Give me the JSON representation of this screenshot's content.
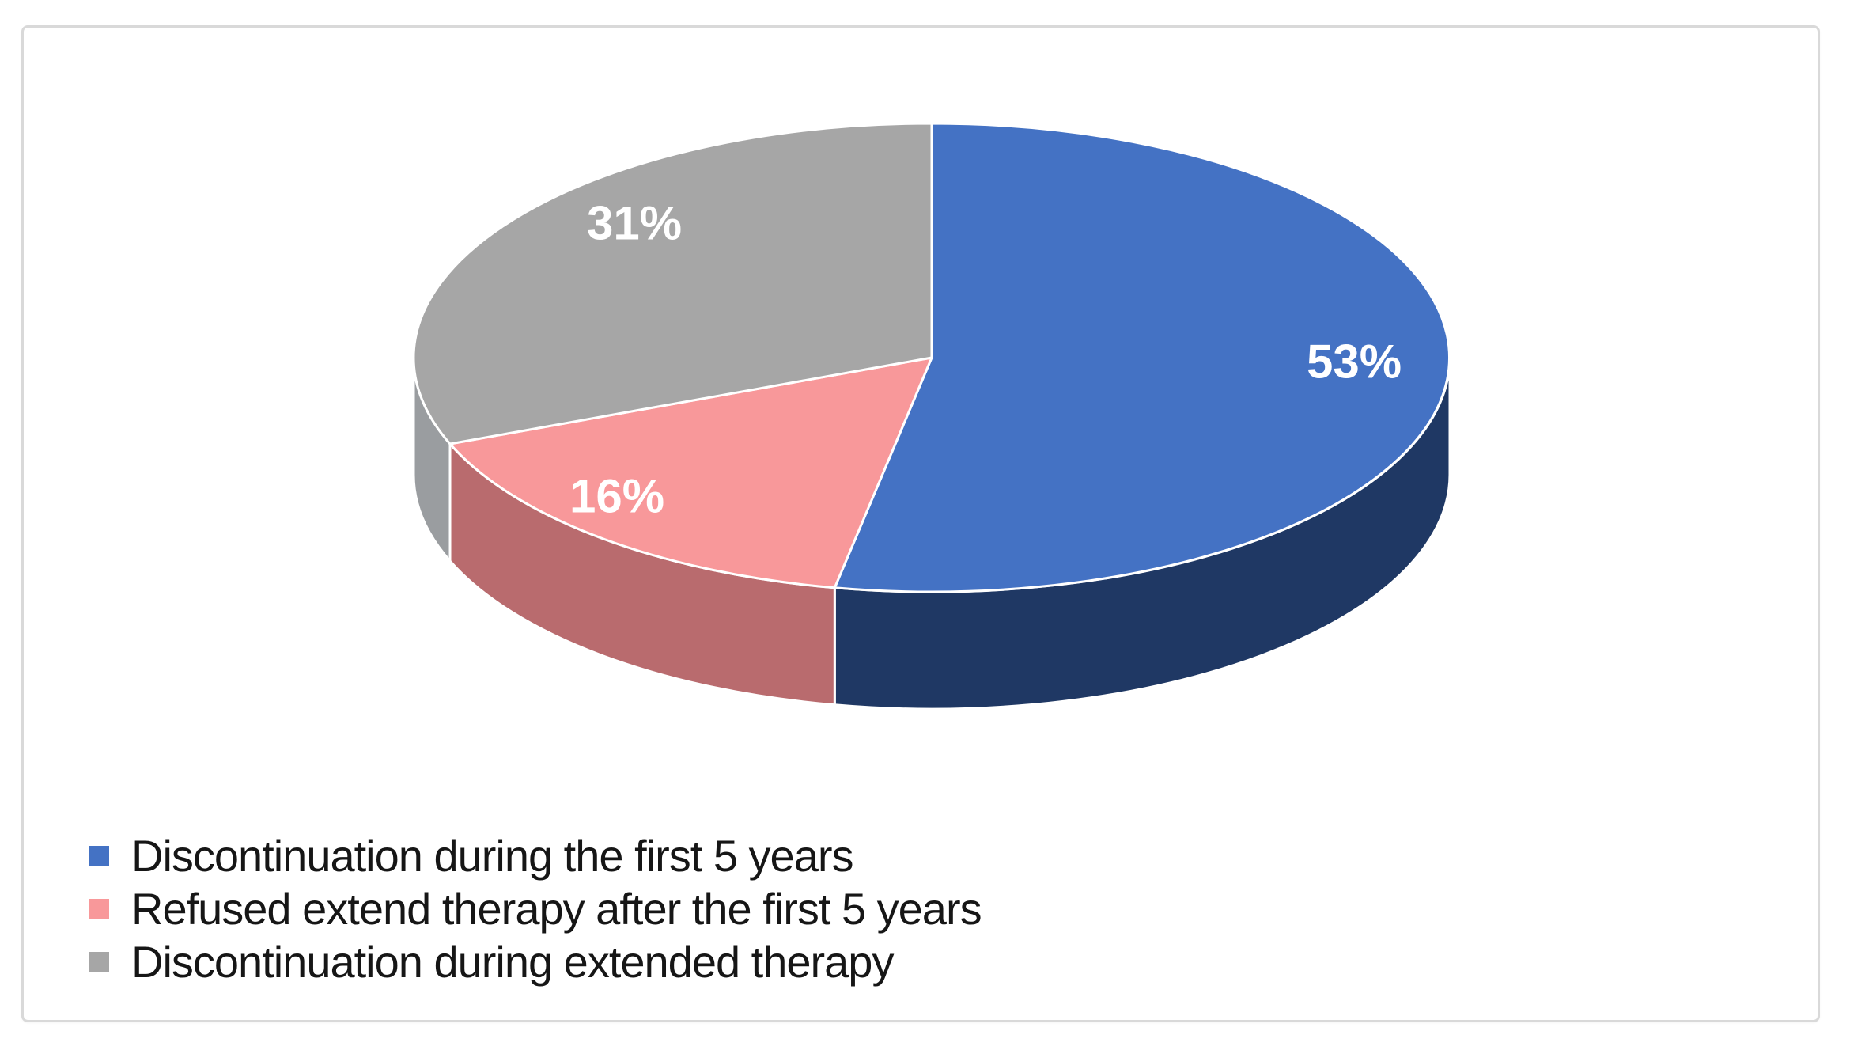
{
  "page": {
    "background_color": "#ffffff",
    "frame_border_color": "#d9d9d9"
  },
  "chart_data": {
    "type": "pie",
    "style": "3d",
    "title": "",
    "start_angle_deg": 0,
    "direction": "clockwise",
    "legend_position": "bottom-left",
    "data_label_color": "#ffffff",
    "slices": [
      {
        "label": "Discontinuation during the first 5 years",
        "value": 53,
        "data_label": "53%",
        "color": "#4472C4",
        "side_color": "#1F3864"
      },
      {
        "label": "Refused extend therapy after the first 5 years",
        "value": 16,
        "data_label": "16%",
        "color": "#F8989A",
        "side_color": "#B96B6E"
      },
      {
        "label": "Discontinuation during extended therapy",
        "value": 31,
        "data_label": "31%",
        "color": "#A6A6A6",
        "side_color": "#9A9DA0"
      }
    ]
  }
}
